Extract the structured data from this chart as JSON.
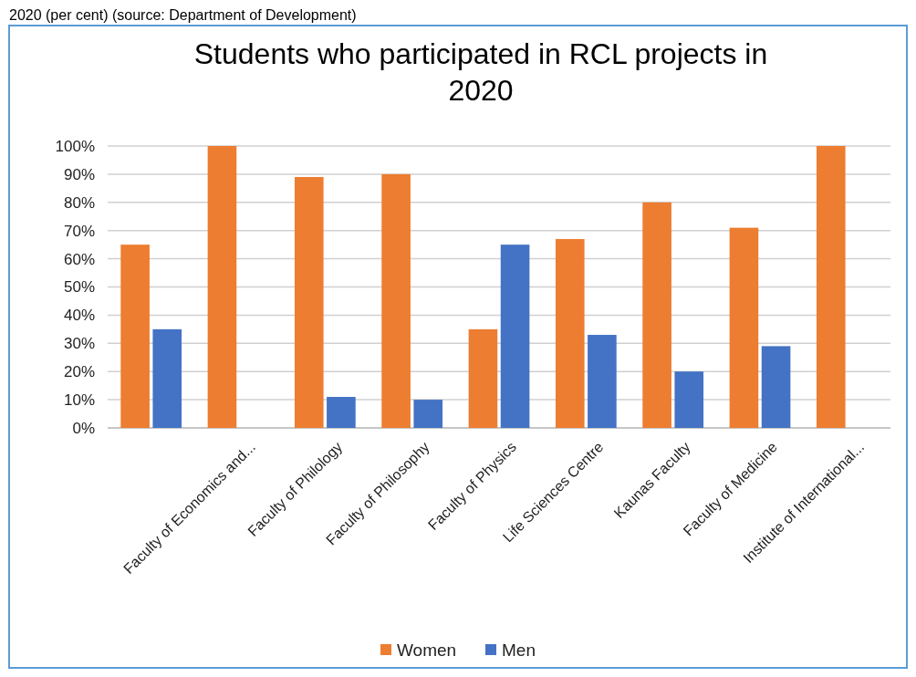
{
  "chart_data": {
    "type": "bar",
    "title": "Students who participated in RCL projects in 2020",
    "annotations": [
      "2020 (per cent) (source: Department of Development)"
    ],
    "categories": [
      null,
      "Faculty of Economics and...",
      "Faculty of Philology",
      "Faculty of Philosophy",
      "Faculty of Physics",
      "Life Sciences Centre",
      "Kaunas Faculty",
      "Faculty of Medicine",
      "Institute of International..."
    ],
    "series": [
      {
        "name": "Women",
        "color": "#ed7d31",
        "values": [
          65,
          100,
          89,
          90,
          35,
          67,
          80,
          71,
          100
        ]
      },
      {
        "name": "Men",
        "color": "#4472c4",
        "values": [
          35,
          null,
          11,
          10,
          65,
          33,
          20,
          29,
          null
        ]
      }
    ],
    "ylim": [
      0,
      100
    ],
    "yticks": [
      {
        "value": 0,
        "label": "0%"
      },
      {
        "value": 10,
        "label": "10%"
      },
      {
        "value": 20,
        "label": "20%"
      },
      {
        "value": 30,
        "label": "30%"
      },
      {
        "value": 40,
        "label": "40%"
      },
      {
        "value": 50,
        "label": "50%"
      },
      {
        "value": 60,
        "label": "60%"
      },
      {
        "value": 70,
        "label": "70%"
      },
      {
        "value": 80,
        "label": "80%"
      },
      {
        "value": 90,
        "label": "90%"
      },
      {
        "value": 100,
        "label": "100%"
      }
    ],
    "grid": "y",
    "legend": "bottom"
  }
}
